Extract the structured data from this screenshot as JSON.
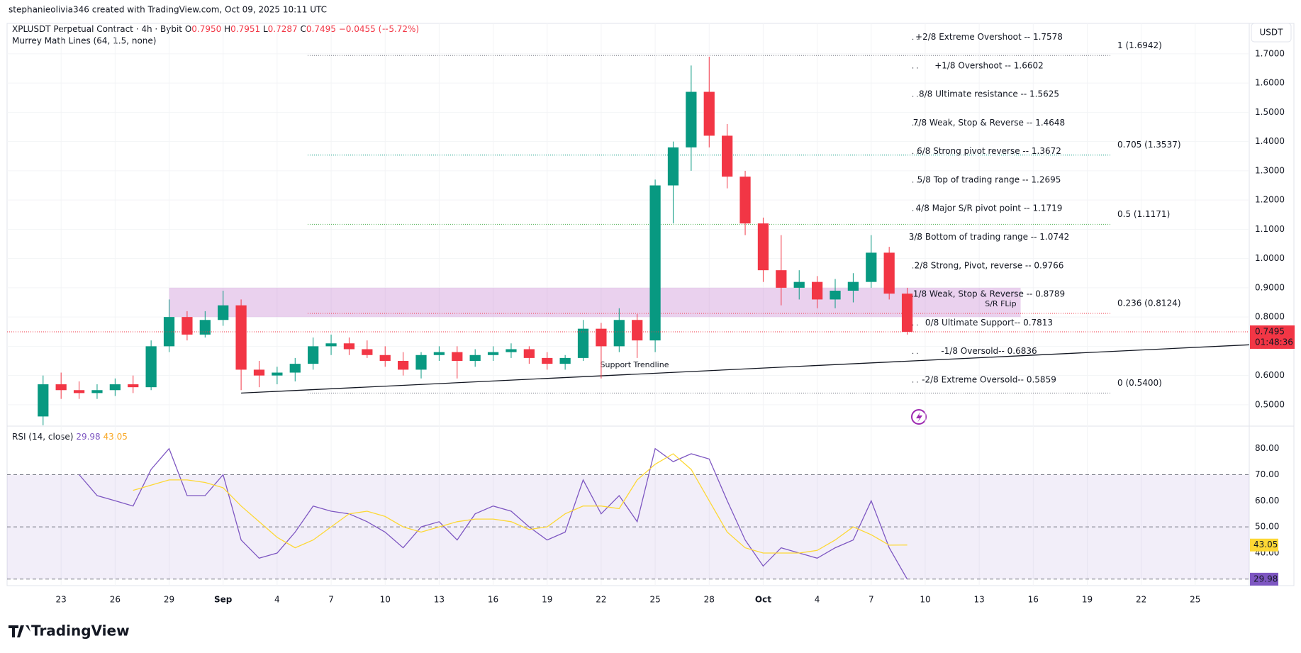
{
  "header": {
    "credit": "stephanieolivia346 created with TradingView.com, Oct 09, 2025 10:11 UTC",
    "symbol": "XPLUSDT Perpetual Contract · 4h · Bybit",
    "o_label": "O",
    "o": "0.7950",
    "h_label": "H",
    "h": "0.7951",
    "l_label": "L",
    "l": "0.7287",
    "c_label": "C",
    "change": "−0.0455 (−5.72%)",
    "indicator": "Murrey Math Lines (64, 1.5, none)",
    "currency": "USDT",
    "brand": "TradingView"
  },
  "chart_data": [
    {
      "type": "candlestick",
      "x": [
        "2025-08-22",
        "2025-08-23",
        "2025-08-24",
        "2025-08-25",
        "2025-08-26",
        "2025-08-27",
        "2025-08-28",
        "2025-08-29",
        "2025-08-30",
        "2025-08-31",
        "2025-09-01",
        "2025-09-02",
        "2025-09-03",
        "2025-09-04",
        "2025-09-05",
        "2025-09-06",
        "2025-09-07",
        "2025-09-08",
        "2025-09-09",
        "2025-09-10",
        "2025-09-11",
        "2025-09-12",
        "2025-09-13",
        "2025-09-14",
        "2025-09-15",
        "2025-09-16",
        "2025-09-17",
        "2025-09-18",
        "2025-09-19",
        "2025-09-20",
        "2025-09-21",
        "2025-09-22",
        "2025-09-23",
        "2025-09-24",
        "2025-09-25",
        "2025-09-26",
        "2025-09-27",
        "2025-09-28",
        "2025-09-29",
        "2025-09-30",
        "2025-10-01",
        "2025-10-02",
        "2025-10-03",
        "2025-10-04",
        "2025-10-05",
        "2025-10-06",
        "2025-10-07",
        "2025-10-08",
        "2025-10-09"
      ],
      "open": [
        0.46,
        0.57,
        0.55,
        0.54,
        0.55,
        0.57,
        0.56,
        0.7,
        0.8,
        0.74,
        0.79,
        0.84,
        0.62,
        0.6,
        0.61,
        0.64,
        0.7,
        0.71,
        0.69,
        0.67,
        0.65,
        0.62,
        0.67,
        0.68,
        0.65,
        0.67,
        0.68,
        0.69,
        0.66,
        0.64,
        0.66,
        0.76,
        0.7,
        0.79,
        0.72,
        1.25,
        1.38,
        1.57,
        1.42,
        1.28,
        1.12,
        0.96,
        0.9,
        0.92,
        0.86,
        0.89,
        0.92,
        1.02,
        0.88
      ],
      "high": [
        0.6,
        0.61,
        0.58,
        0.57,
        0.59,
        0.6,
        0.72,
        0.86,
        0.82,
        0.82,
        0.89,
        0.86,
        0.65,
        0.63,
        0.66,
        0.73,
        0.74,
        0.73,
        0.72,
        0.7,
        0.68,
        0.68,
        0.7,
        0.7,
        0.69,
        0.7,
        0.71,
        0.7,
        0.68,
        0.67,
        0.79,
        0.78,
        0.83,
        0.81,
        1.27,
        1.4,
        1.66,
        1.69,
        1.46,
        1.3,
        1.14,
        1.08,
        0.96,
        0.94,
        0.93,
        0.95,
        1.08,
        1.04,
        0.9
      ],
      "low": [
        0.43,
        0.52,
        0.52,
        0.52,
        0.53,
        0.54,
        0.55,
        0.68,
        0.72,
        0.73,
        0.77,
        0.55,
        0.56,
        0.57,
        0.58,
        0.62,
        0.67,
        0.67,
        0.66,
        0.63,
        0.6,
        0.59,
        0.65,
        0.59,
        0.63,
        0.65,
        0.66,
        0.64,
        0.62,
        0.62,
        0.65,
        0.59,
        0.68,
        0.66,
        0.68,
        1.12,
        1.3,
        1.38,
        1.24,
        1.08,
        0.92,
        0.84,
        0.86,
        0.83,
        0.83,
        0.85,
        0.9,
        0.86,
        0.74
      ],
      "close": [
        0.57,
        0.55,
        0.54,
        0.55,
        0.57,
        0.56,
        0.7,
        0.8,
        0.74,
        0.79,
        0.84,
        0.62,
        0.6,
        0.61,
        0.64,
        0.7,
        0.71,
        0.69,
        0.67,
        0.65,
        0.62,
        0.67,
        0.68,
        0.65,
        0.67,
        0.68,
        0.69,
        0.66,
        0.64,
        0.66,
        0.76,
        0.7,
        0.79,
        0.72,
        1.25,
        1.38,
        1.57,
        1.42,
        1.28,
        1.12,
        0.96,
        0.9,
        0.92,
        0.86,
        0.89,
        0.92,
        1.02,
        0.88,
        0.7495
      ],
      "up_color": "#089981",
      "down_color": "#f23645",
      "xlim": [
        "2025-08-20",
        "2025-10-28"
      ],
      "xticks": [
        {
          "value": "2025-08-23",
          "label": "23"
        },
        {
          "value": "2025-08-26",
          "label": "26"
        },
        {
          "value": "2025-08-29",
          "label": "29"
        },
        {
          "value": "2025-09-01",
          "label": "Sep"
        },
        {
          "value": "2025-09-04",
          "label": "4"
        },
        {
          "value": "2025-09-07",
          "label": "7"
        },
        {
          "value": "2025-09-10",
          "label": "10"
        },
        {
          "value": "2025-09-13",
          "label": "13"
        },
        {
          "value": "2025-09-16",
          "label": "16"
        },
        {
          "value": "2025-09-19",
          "label": "19"
        },
        {
          "value": "2025-09-22",
          "label": "22"
        },
        {
          "value": "2025-09-25",
          "label": "25"
        },
        {
          "value": "2025-09-28",
          "label": "28"
        },
        {
          "value": "2025-10-01",
          "label": "Oct"
        },
        {
          "value": "2025-10-04",
          "label": "4"
        },
        {
          "value": "2025-10-07",
          "label": "7"
        },
        {
          "value": "2025-10-10",
          "label": "10"
        },
        {
          "value": "2025-10-13",
          "label": "13"
        },
        {
          "value": "2025-10-16",
          "label": "16"
        },
        {
          "value": "2025-10-19",
          "label": "19"
        },
        {
          "value": "2025-10-22",
          "label": "22"
        },
        {
          "value": "2025-10-25",
          "label": "25"
        }
      ],
      "ylim": [
        0.427,
        1.804
      ],
      "yticks": [
        {
          "value": 0.5,
          "label": "0.5000"
        },
        {
          "value": 0.6,
          "label": "0.6000"
        },
        {
          "value": 0.7,
          "label": "0.7000"
        },
        {
          "value": 0.8,
          "label": "0.8000"
        },
        {
          "value": 0.9,
          "label": "0.9000"
        },
        {
          "value": 1.0,
          "label": "1.0000"
        },
        {
          "value": 1.1,
          "label": "1.1000"
        },
        {
          "value": 1.2,
          "label": "1.2000"
        },
        {
          "value": 1.3,
          "label": "1.3000"
        },
        {
          "value": 1.4,
          "label": "1.4000"
        },
        {
          "value": 1.5,
          "label": "1.5000"
        },
        {
          "value": 1.6,
          "label": "1.6000"
        },
        {
          "value": 1.7,
          "label": "1.7000"
        }
      ],
      "last_price_label": "0.7495",
      "countdown": "01:48:36",
      "murrey": [
        {
          "label": "+2/8 Extreme Overshoot --",
          "value": 1.7578,
          "color": "#f23645"
        },
        {
          "label": "+1/8 Overshoot --",
          "value": 1.6602,
          "color": "#f23645"
        },
        {
          "label": "8/8 Ultimate resistance --",
          "value": 1.5625,
          "color": "#00bcd4"
        },
        {
          "label": "7/8 Weak, Stop & Reverse --",
          "value": 1.4648,
          "color": "#ff9800"
        },
        {
          "label": "6/8 Strong pivot reverse --",
          "value": 1.3672,
          "color": "#e040fb"
        },
        {
          "label": "5/8 Top of trading range --",
          "value": 1.2695,
          "color": "#4caf50"
        },
        {
          "label": "4/8 Major S/R pivot point --",
          "value": 1.1719,
          "color": "#00bcd4"
        },
        {
          "label": "3/8 Bottom of trading range --",
          "value": 1.0742,
          "color": "#4caf50"
        },
        {
          "label": "2/8 Strong, Pivot, reverse --",
          "value": 0.9766,
          "color": "#e040fb"
        },
        {
          "label": "1/8 Weak, Stop & Reverse --",
          "value": 0.8789,
          "color": "#ff9800"
        },
        {
          "label": "0/8 Ultimate Support--",
          "value": 0.7813,
          "color": "#00bcd4"
        },
        {
          "label": "-1/8 Oversold--",
          "value": 0.6836,
          "color": "#4caf50"
        },
        {
          "label": "-2/8 Extreme Oversold--",
          "value": 0.5859,
          "color": "#4caf50"
        }
      ],
      "fib": [
        {
          "label": "1 (1.6942)",
          "price": 1.6942,
          "color": "#787b86"
        },
        {
          "label": "0.705 (1.3537)",
          "price": 1.3537,
          "color": "#089981"
        },
        {
          "label": "0.5 (1.1171)",
          "price": 1.1171,
          "color": "#4caf50"
        },
        {
          "label": "0.236 (0.8124)",
          "price": 0.8124,
          "color": "#f23645"
        },
        {
          "label": "0 (0.5400)",
          "price": 0.54,
          "color": "#787b86"
        }
      ],
      "zone": {
        "label": "S/R FLip",
        "low": 0.8,
        "high": 0.9
      },
      "trendline": {
        "label": "Support Trendline",
        "start": 0.54,
        "end": 0.705
      }
    },
    {
      "type": "line",
      "title": "RSI (14, close)",
      "x_ref": "chart_data.0.x",
      "series": [
        {
          "name": "RSI",
          "color": "#7e57c2",
          "values": [
            null,
            null,
            70,
            62,
            60,
            58,
            72,
            80,
            62,
            62,
            70,
            45,
            38,
            40,
            48,
            58,
            56,
            55,
            52,
            48,
            42,
            50,
            52,
            45,
            55,
            58,
            56,
            50,
            45,
            48,
            68,
            55,
            62,
            52,
            80,
            75,
            78,
            76,
            60,
            45,
            35,
            42,
            40,
            38,
            42,
            45,
            60,
            42,
            29.98
          ]
        },
        {
          "name": "RSI MA",
          "color": "#fdd835",
          "values": [
            null,
            null,
            null,
            null,
            null,
            64,
            66,
            68,
            68,
            67,
            65,
            58,
            52,
            46,
            42,
            45,
            50,
            55,
            56,
            54,
            50,
            48,
            50,
            52,
            53,
            53,
            52,
            49,
            50,
            55,
            58,
            58,
            57,
            68,
            74,
            78,
            72,
            60,
            48,
            42,
            40,
            40,
            40,
            41,
            45,
            50,
            47,
            43,
            43.05
          ]
        }
      ],
      "ylim": [
        27.5,
        88.6
      ],
      "yticks": [
        {
          "value": 40,
          "label": "40.00"
        },
        {
          "value": 50,
          "label": "50.00"
        },
        {
          "value": 60,
          "label": "60.00"
        },
        {
          "value": 70,
          "label": "70.00"
        },
        {
          "value": 80,
          "label": "80.00"
        }
      ],
      "bands": [
        30,
        50,
        70
      ]
    }
  ]
}
